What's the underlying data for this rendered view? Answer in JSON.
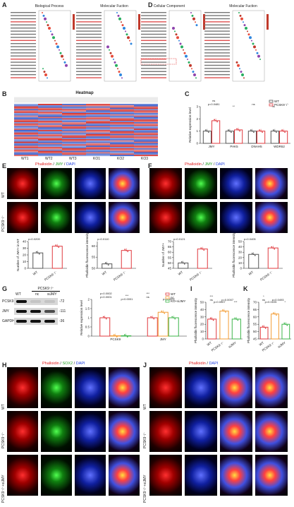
{
  "panels": {
    "A": "A",
    "B": "B",
    "C": "C",
    "D": "D",
    "E": "E",
    "F": "F",
    "G": "G",
    "H": "H",
    "I": "I",
    "J": "J",
    "K": "K"
  },
  "go": {
    "bp_title": "Biological Process",
    "mf_title": "Molecular Fuction",
    "cc_title": "Cellular Component",
    "mf2_title": "Molecular Fuction"
  },
  "heatmap": {
    "title": "Heatmap",
    "samples": [
      "WT1",
      "WT2",
      "WT3",
      "KO1",
      "KO2",
      "KO3"
    ]
  },
  "stains": {
    "phalloidin": "Phalloidin",
    "jmy": "JMY",
    "dapi": "DAPI",
    "sox2": "SOX2",
    "sep": "/"
  },
  "rows": {
    "wt": "WT",
    "pcsk9": "PCSK9⁻/⁻",
    "pcsk9_sijmy": "PCSK9⁻/⁻+siJMY"
  },
  "western": {
    "group_label": "PCSK9⁻/⁻",
    "lanes": [
      "WT",
      "nc",
      "siJMY"
    ],
    "bands": [
      {
        "name": "PCSK9",
        "kda": "-72"
      },
      {
        "name": "JMY",
        "kda": "-111"
      },
      {
        "name": "GAPDH",
        "kda": "-36"
      }
    ]
  },
  "chart_data": [
    {
      "panel": "C",
      "type": "bar",
      "categories": [
        "JMY",
        "PAK5",
        "DNAH5",
        "WDR62"
      ],
      "series": [
        {
          "name": "WT",
          "values": [
            1.0,
            1.0,
            1.0,
            1.0
          ],
          "color": "#555555"
        },
        {
          "name": "PCSK9⁻/⁻",
          "values": [
            1.85,
            1.1,
            1.0,
            1.0
          ],
          "color": "#e0393e"
        }
      ],
      "ylabel": "Relative expression level",
      "ylim": [
        0,
        3
      ],
      "yticks": [
        0,
        1,
        2,
        3
      ],
      "annotations": [
        "p=0.0481",
        "**",
        "ns",
        "ns",
        "ns"
      ]
    },
    {
      "panel": "E1",
      "type": "bar",
      "categories": [
        "WT",
        "PCSK9⁻/⁻"
      ],
      "values": [
        23,
        33
      ],
      "ylabel": "Number of JMY+ in NT",
      "ylim": [
        0,
        40
      ],
      "yticks": [
        0,
        10,
        20,
        30,
        40
      ],
      "annotations": [
        "p=0.0209"
      ]
    },
    {
      "panel": "E2",
      "type": "bar",
      "categories": [
        "WT",
        "PCSK9⁻/⁻"
      ],
      "values": [
        52,
        58
      ],
      "ylabel": "Phalloidin fluorescence intensity",
      "ylim": [
        50,
        62
      ],
      "yticks": [
        50,
        55,
        60
      ],
      "annotations": [
        "p=0.0110"
      ]
    },
    {
      "panel": "F1",
      "type": "bar",
      "categories": [
        "WT",
        "PCSK9⁻/⁻"
      ],
      "values": [
        50,
        63
      ],
      "ylabel": "Number of JMY+",
      "ylim": [
        45,
        70
      ],
      "yticks": [
        45,
        50,
        55,
        60,
        65,
        70
      ],
      "annotations": [
        "p=0.0121"
      ]
    },
    {
      "panel": "F2",
      "type": "bar",
      "categories": [
        "WT",
        "PCSK9⁻/⁻"
      ],
      "values": [
        26,
        38
      ],
      "ylabel": "Phalloidin fluorescence intensity",
      "ylim": [
        0,
        50
      ],
      "yticks": [
        0,
        10,
        20,
        30,
        40,
        50
      ],
      "annotations": [
        "p=0.0405"
      ]
    },
    {
      "panel": "G",
      "type": "bar",
      "categories": [
        "PCSK9",
        "JMY"
      ],
      "series": [
        {
          "name": "WT",
          "values": [
            1.0,
            1.0
          ],
          "color": "#e0393e"
        },
        {
          "name": "nc",
          "values": [
            0.02,
            1.3
          ],
          "color": "#f39c34"
        },
        {
          "name": "KO+siJMY",
          "values": [
            0.02,
            1.0
          ],
          "color": "#3cb54a"
        }
      ],
      "ylabel": "Relative expression level",
      "ylim": [
        0,
        2.0
      ],
      "yticks": [
        0,
        0.5,
        1.0,
        1.5,
        2.0
      ],
      "annotations": [
        "p<0.0001",
        "p<0.0001",
        "ns",
        "p=0.0002",
        "p=0.0002",
        "***",
        "***"
      ]
    },
    {
      "panel": "I",
      "type": "bar",
      "categories": [
        "WT",
        "PCSK9⁻/⁻",
        "siJMY"
      ],
      "values": [
        27,
        38,
        27
      ],
      "colors": [
        "#e0393e",
        "#f39c34",
        "#3cb54a"
      ],
      "ylabel": "Phalloidin fluorescence intensity",
      "ylim": [
        0,
        50
      ],
      "yticks": [
        0,
        10,
        20,
        30,
        40,
        50
      ],
      "annotations": [
        "ns",
        "p=0.0007",
        "p=0.0007",
        "***",
        "***"
      ]
    },
    {
      "panel": "K",
      "type": "bar",
      "categories": [
        "WT",
        "PCSK9⁻/⁻",
        "siJMY"
      ],
      "values": [
        53,
        62,
        55
      ],
      "colors": [
        "#e0393e",
        "#f39c34",
        "#3cb54a"
      ],
      "ylabel": "Phalloidin fluorescence intensity",
      "ylim": [
        45,
        70
      ],
      "yticks": [
        45,
        50,
        55,
        60,
        65,
        70
      ],
      "annotations": [
        "ns",
        "p=0.0225",
        "p=0.0493",
        "*",
        "*"
      ]
    }
  ]
}
